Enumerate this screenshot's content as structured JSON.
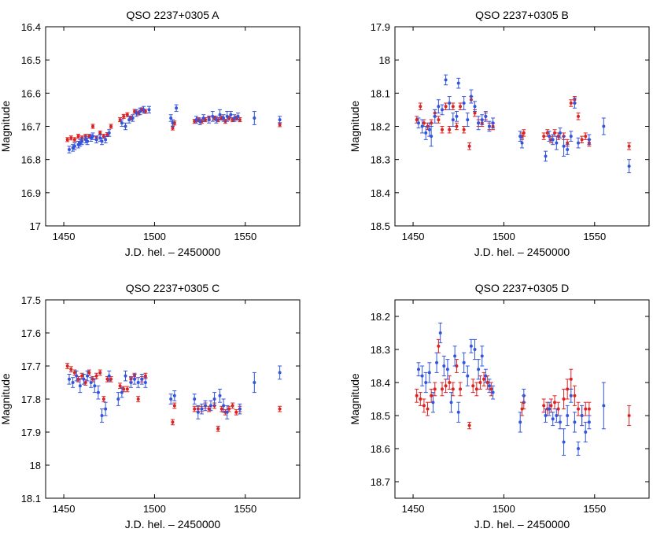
{
  "chart_data": [
    {
      "type": "scatter",
      "title": "QSO 2237+0305 A",
      "xlabel": "J.D. hel. – 2450000",
      "ylabel": "Magnitude",
      "xlim": [
        1440,
        1580
      ],
      "ylim": [
        16.4,
        17.0
      ],
      "y_inverted": true,
      "xticks": [
        "1450",
        "1500",
        "1550"
      ],
      "yticks": [
        "16.4",
        "16.5",
        "16.6",
        "16.7",
        "16.8",
        "16.9",
        "17"
      ],
      "series": [
        {
          "name": "blue",
          "color": "#3355dd",
          "x": [
            1453,
            1455,
            1456,
            1458,
            1459,
            1460,
            1462,
            1463,
            1465,
            1466,
            1468,
            1470,
            1471,
            1473,
            1475,
            1482,
            1484,
            1486,
            1488,
            1490,
            1492,
            1494,
            1497,
            1509,
            1510,
            1512,
            1523,
            1525,
            1527,
            1530,
            1532,
            1534,
            1536,
            1538,
            1540,
            1542,
            1544,
            1546,
            1555,
            1569
          ],
          "y": [
            16.77,
            16.765,
            16.76,
            16.755,
            16.75,
            16.745,
            16.74,
            16.745,
            16.735,
            16.73,
            16.74,
            16.735,
            16.745,
            16.74,
            16.72,
            16.69,
            16.7,
            16.68,
            16.675,
            16.66,
            16.655,
            16.65,
            16.65,
            16.675,
            16.69,
            16.645,
            16.68,
            16.685,
            16.675,
            16.68,
            16.67,
            16.68,
            16.665,
            16.675,
            16.67,
            16.665,
            16.675,
            16.67,
            16.675,
            16.68
          ],
          "err": [
            0.01,
            0.01,
            0.01,
            0.01,
            0.01,
            0.01,
            0.01,
            0.01,
            0.01,
            0.01,
            0.01,
            0.01,
            0.01,
            0.01,
            0.01,
            0.01,
            0.01,
            0.01,
            0.01,
            0.01,
            0.01,
            0.01,
            0.01,
            0.01,
            0.01,
            0.01,
            0.01,
            0.01,
            0.01,
            0.01,
            0.015,
            0.01,
            0.015,
            0.01,
            0.015,
            0.01,
            0.01,
            0.01,
            0.02,
            0.01
          ]
        },
        {
          "name": "red",
          "color": "#dd2222",
          "x": [
            1452,
            1454,
            1456,
            1458,
            1460,
            1462,
            1464,
            1466,
            1468,
            1470,
            1472,
            1474,
            1476,
            1481,
            1483,
            1485,
            1487,
            1489,
            1491,
            1493,
            1495,
            1510,
            1511,
            1522,
            1524,
            1526,
            1528,
            1530,
            1533,
            1535,
            1537,
            1539,
            1541,
            1543,
            1545,
            1547,
            1569
          ],
          "y": [
            16.74,
            16.735,
            16.74,
            16.73,
            16.735,
            16.73,
            16.73,
            16.7,
            16.735,
            16.72,
            16.73,
            16.725,
            16.7,
            16.68,
            16.67,
            16.665,
            16.675,
            16.655,
            16.66,
            16.65,
            16.655,
            16.705,
            16.69,
            16.685,
            16.68,
            16.685,
            16.68,
            16.675,
            16.675,
            16.68,
            16.675,
            16.685,
            16.675,
            16.68,
            16.675,
            16.68,
            16.695
          ],
          "err": [
            0.006,
            0.006,
            0.006,
            0.006,
            0.006,
            0.006,
            0.006,
            0.006,
            0.006,
            0.006,
            0.006,
            0.006,
            0.006,
            0.006,
            0.006,
            0.006,
            0.006,
            0.006,
            0.006,
            0.006,
            0.006,
            0.006,
            0.006,
            0.006,
            0.006,
            0.006,
            0.006,
            0.006,
            0.006,
            0.006,
            0.006,
            0.006,
            0.006,
            0.006,
            0.006,
            0.006,
            0.006
          ]
        }
      ]
    },
    {
      "type": "scatter",
      "title": "QSO 2237+0305 B",
      "xlabel": "J.D. hel. – 2450000",
      "ylabel": "Magnitude",
      "xlim": [
        1440,
        1580
      ],
      "ylim": [
        17.9,
        18.5
      ],
      "y_inverted": true,
      "xticks": [
        "1450",
        "1500",
        "1550"
      ],
      "yticks": [
        "17.9",
        "18",
        "18.1",
        "18.2",
        "18.3",
        "18.4",
        "18.5"
      ],
      "series": [
        {
          "name": "blue",
          "color": "#3355dd",
          "x": [
            1453,
            1455,
            1457,
            1459,
            1460,
            1462,
            1464,
            1466,
            1468,
            1470,
            1472,
            1474,
            1475,
            1478,
            1480,
            1482,
            1484,
            1486,
            1488,
            1490,
            1492,
            1494,
            1509,
            1510,
            1523,
            1525,
            1527,
            1529,
            1531,
            1533,
            1535,
            1537,
            1539,
            1541,
            1547,
            1555,
            1569
          ],
          "y": [
            18.19,
            18.2,
            18.22,
            18.21,
            18.23,
            18.17,
            18.14,
            18.15,
            18.06,
            18.13,
            18.18,
            18.17,
            18.07,
            18.13,
            18.18,
            18.11,
            18.14,
            18.19,
            18.18,
            18.17,
            18.2,
            18.19,
            18.23,
            18.25,
            18.29,
            18.23,
            18.24,
            18.25,
            18.22,
            18.26,
            18.27,
            18.23,
            18.13,
            18.25,
            18.24,
            18.2,
            18.32
          ],
          "err": [
            0.015,
            0.02,
            0.02,
            0.02,
            0.03,
            0.02,
            0.02,
            0.015,
            0.015,
            0.02,
            0.02,
            0.015,
            0.015,
            0.02,
            0.02,
            0.02,
            0.015,
            0.02,
            0.015,
            0.015,
            0.015,
            0.015,
            0.015,
            0.015,
            0.015,
            0.015,
            0.015,
            0.02,
            0.015,
            0.03,
            0.015,
            0.015,
            0.015,
            0.015,
            0.015,
            0.025,
            0.02
          ]
        },
        {
          "name": "red",
          "color": "#dd2222",
          "x": [
            1452,
            1454,
            1456,
            1458,
            1460,
            1462,
            1464,
            1466,
            1468,
            1470,
            1472,
            1474,
            1476,
            1478,
            1481,
            1482,
            1484,
            1486,
            1488,
            1490,
            1492,
            1494,
            1510,
            1511,
            1522,
            1524,
            1526,
            1528,
            1530,
            1533,
            1535,
            1537,
            1539,
            1541,
            1543,
            1545,
            1547,
            1569
          ],
          "y": [
            18.18,
            18.14,
            18.19,
            18.2,
            18.19,
            18.16,
            18.18,
            18.21,
            18.14,
            18.21,
            18.14,
            18.2,
            18.14,
            18.21,
            18.26,
            18.12,
            18.16,
            18.19,
            18.19,
            18.17,
            18.2,
            18.2,
            18.23,
            18.22,
            18.23,
            18.22,
            18.24,
            18.22,
            18.23,
            18.23,
            18.25,
            18.13,
            18.12,
            18.17,
            18.24,
            18.23,
            18.25,
            18.26
          ],
          "err": [
            0.01,
            0.01,
            0.01,
            0.01,
            0.01,
            0.01,
            0.01,
            0.01,
            0.01,
            0.01,
            0.01,
            0.01,
            0.01,
            0.01,
            0.01,
            0.01,
            0.01,
            0.01,
            0.01,
            0.01,
            0.01,
            0.01,
            0.01,
            0.01,
            0.01,
            0.01,
            0.01,
            0.01,
            0.01,
            0.01,
            0.01,
            0.01,
            0.01,
            0.01,
            0.01,
            0.01,
            0.01,
            0.01
          ]
        }
      ]
    },
    {
      "type": "scatter",
      "title": "QSO 2237+0305 C",
      "xlabel": "J.D. hel. – 2450000",
      "ylabel": "Magnitude",
      "xlim": [
        1440,
        1580
      ],
      "ylim": [
        17.5,
        18.1
      ],
      "y_inverted": true,
      "xticks": [
        "1450",
        "1500",
        "1550"
      ],
      "yticks": [
        "17.5",
        "17.6",
        "17.7",
        "17.8",
        "17.9",
        "18",
        "18.1"
      ],
      "series": [
        {
          "name": "blue",
          "color": "#3355dd",
          "x": [
            1453,
            1455,
            1457,
            1459,
            1461,
            1463,
            1465,
            1467,
            1469,
            1471,
            1473,
            1475,
            1480,
            1482,
            1484,
            1487,
            1489,
            1491,
            1493,
            1495,
            1509,
            1511,
            1522,
            1524,
            1526,
            1528,
            1531,
            1533,
            1536,
            1538,
            1540,
            1547,
            1555,
            1569
          ],
          "y": [
            17.74,
            17.75,
            17.73,
            17.76,
            17.74,
            17.73,
            17.75,
            17.76,
            17.78,
            17.85,
            17.83,
            17.73,
            17.8,
            17.78,
            17.73,
            17.75,
            17.74,
            17.75,
            17.74,
            17.75,
            17.8,
            17.79,
            17.8,
            17.84,
            17.83,
            17.82,
            17.82,
            17.8,
            17.79,
            17.82,
            17.84,
            17.83,
            17.75,
            17.72
          ],
          "err": [
            0.015,
            0.015,
            0.015,
            0.02,
            0.015,
            0.015,
            0.015,
            0.02,
            0.02,
            0.02,
            0.02,
            0.015,
            0.02,
            0.015,
            0.015,
            0.015,
            0.015,
            0.015,
            0.015,
            0.015,
            0.015,
            0.015,
            0.015,
            0.02,
            0.015,
            0.015,
            0.015,
            0.02,
            0.02,
            0.02,
            0.02,
            0.015,
            0.03,
            0.02
          ]
        },
        {
          "name": "red",
          "color": "#dd2222",
          "x": [
            1452,
            1454,
            1456,
            1458,
            1460,
            1462,
            1464,
            1466,
            1468,
            1470,
            1472,
            1474,
            1476,
            1481,
            1483,
            1485,
            1487,
            1489,
            1491,
            1493,
            1495,
            1510,
            1511,
            1522,
            1524,
            1526,
            1528,
            1530,
            1533,
            1535,
            1537,
            1539,
            1541,
            1543,
            1545,
            1547,
            1569
          ],
          "y": [
            17.7,
            17.71,
            17.72,
            17.74,
            17.73,
            17.75,
            17.72,
            17.74,
            17.73,
            17.72,
            17.8,
            17.74,
            17.74,
            17.76,
            17.77,
            17.77,
            17.74,
            17.73,
            17.8,
            17.74,
            17.73,
            17.87,
            17.82,
            17.83,
            17.83,
            17.83,
            17.82,
            17.83,
            17.82,
            17.89,
            17.83,
            17.84,
            17.83,
            17.82,
            17.84,
            17.83,
            17.83
          ],
          "err": [
            0.008,
            0.008,
            0.008,
            0.008,
            0.008,
            0.008,
            0.008,
            0.008,
            0.008,
            0.008,
            0.008,
            0.008,
            0.008,
            0.008,
            0.008,
            0.008,
            0.008,
            0.008,
            0.008,
            0.008,
            0.008,
            0.008,
            0.008,
            0.008,
            0.008,
            0.008,
            0.008,
            0.008,
            0.008,
            0.008,
            0.008,
            0.008,
            0.008,
            0.008,
            0.008,
            0.008,
            0.008
          ]
        }
      ]
    },
    {
      "type": "scatter",
      "title": "QSO 2237+0305 D",
      "xlabel": "J.D. hel. – 2450000",
      "ylabel": "Magnitude",
      "xlim": [
        1440,
        1580
      ],
      "ylim": [
        18.15,
        18.75
      ],
      "y_inverted": true,
      "xticks": [
        "1450",
        "1500",
        "1550"
      ],
      "yticks": [
        "18.2",
        "18.3",
        "18.4",
        "18.5",
        "18.6",
        "18.7"
      ],
      "series": [
        {
          "name": "blue",
          "color": "#3355dd",
          "x": [
            1453,
            1455,
            1457,
            1459,
            1461,
            1463,
            1465,
            1467,
            1469,
            1471,
            1473,
            1475,
            1478,
            1480,
            1482,
            1484,
            1486,
            1488,
            1490,
            1492,
            1494,
            1509,
            1511,
            1523,
            1525,
            1527,
            1529,
            1531,
            1533,
            1535,
            1537,
            1539,
            1541,
            1543,
            1545,
            1547,
            1555
          ],
          "y": [
            18.36,
            18.38,
            18.4,
            18.37,
            18.46,
            18.34,
            18.25,
            18.35,
            18.36,
            18.46,
            18.32,
            18.49,
            18.34,
            18.38,
            18.29,
            18.3,
            18.36,
            18.32,
            18.38,
            18.41,
            18.43,
            18.52,
            18.44,
            18.5,
            18.48,
            18.51,
            18.5,
            18.52,
            18.58,
            18.5,
            18.44,
            18.52,
            18.6,
            18.5,
            18.55,
            18.52,
            18.47
          ],
          "err": [
            0.02,
            0.03,
            0.03,
            0.03,
            0.03,
            0.03,
            0.03,
            0.03,
            0.03,
            0.03,
            0.03,
            0.03,
            0.03,
            0.03,
            0.02,
            0.03,
            0.03,
            0.03,
            0.02,
            0.02,
            0.02,
            0.03,
            0.02,
            0.02,
            0.02,
            0.02,
            0.02,
            0.02,
            0.04,
            0.03,
            0.02,
            0.03,
            0.02,
            0.03,
            0.03,
            0.02,
            0.07
          ]
        },
        {
          "name": "red",
          "color": "#dd2222",
          "x": [
            1452,
            1454,
            1456,
            1458,
            1460,
            1462,
            1464,
            1466,
            1468,
            1470,
            1472,
            1474,
            1476,
            1481,
            1483,
            1485,
            1487,
            1489,
            1491,
            1493,
            1510,
            1511,
            1522,
            1524,
            1526,
            1528,
            1530,
            1533,
            1535,
            1537,
            1539,
            1541,
            1543,
            1545,
            1547,
            1569
          ],
          "y": [
            18.44,
            18.45,
            18.47,
            18.48,
            18.44,
            18.42,
            18.29,
            18.42,
            18.41,
            18.4,
            18.42,
            18.35,
            18.42,
            18.53,
            18.41,
            18.42,
            18.4,
            18.39,
            18.4,
            18.42,
            18.48,
            18.46,
            18.47,
            18.48,
            18.47,
            18.46,
            18.48,
            18.45,
            18.42,
            18.39,
            18.44,
            18.48,
            18.5,
            18.48,
            18.48,
            18.5
          ],
          "err": [
            0.02,
            0.02,
            0.02,
            0.02,
            0.02,
            0.02,
            0.02,
            0.02,
            0.02,
            0.02,
            0.02,
            0.02,
            0.02,
            0.01,
            0.02,
            0.02,
            0.02,
            0.02,
            0.02,
            0.02,
            0.02,
            0.02,
            0.02,
            0.02,
            0.02,
            0.02,
            0.02,
            0.03,
            0.03,
            0.03,
            0.03,
            0.02,
            0.03,
            0.02,
            0.02,
            0.03
          ]
        }
      ]
    }
  ]
}
